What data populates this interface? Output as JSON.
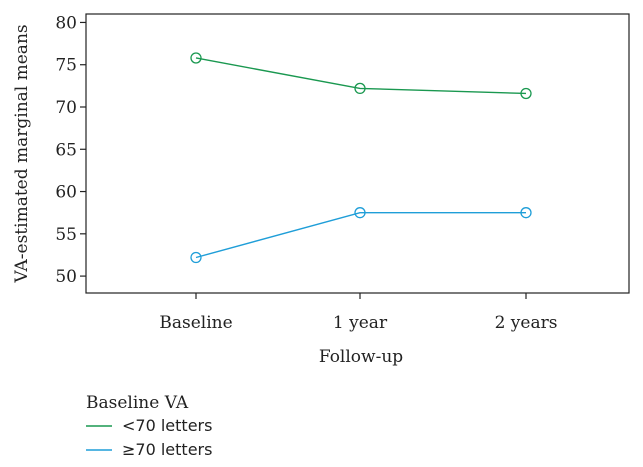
{
  "chart_data": {
    "type": "line",
    "xlabel": "Follow-up",
    "ylabel": "VA-estimated marginal means",
    "categories": [
      "Baseline",
      "1 year",
      "2 years"
    ],
    "ylim": [
      48,
      81
    ],
    "yticks": [
      50,
      55,
      60,
      65,
      70,
      75,
      80
    ],
    "grid": false,
    "legend": {
      "title": "Baseline VA",
      "placement": "bottom-left"
    },
    "series": [
      {
        "name": "<70 letters",
        "values": [
          75.8,
          72.2,
          71.6
        ],
        "color": "#1a9850"
      },
      {
        "name": "≥70 letters",
        "values": [
          52.2,
          57.5,
          57.5
        ],
        "color": "#1f9ed8"
      }
    ]
  }
}
